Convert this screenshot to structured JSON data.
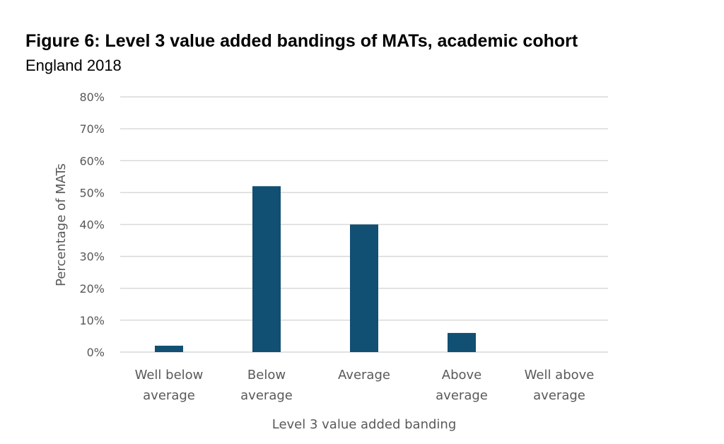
{
  "title": "Figure 6: Level 3 value added bandings of MATs, academic cohort",
  "subtitle": "England 2018",
  "chart_data": {
    "type": "bar",
    "categories": [
      [
        "Well below",
        "average"
      ],
      [
        "Below",
        "average"
      ],
      [
        "Average"
      ],
      [
        "Above",
        "average"
      ],
      [
        "Well above",
        "average"
      ]
    ],
    "values": [
      2,
      52,
      40,
      6,
      0
    ],
    "xlabel": "Level 3 value added banding",
    "ylabel": "Percentage of MATs",
    "ylim": [
      0,
      80
    ],
    "yticks": [
      "0%",
      "10%",
      "20%",
      "30%",
      "40%",
      "50%",
      "60%",
      "70%",
      "80%"
    ],
    "grid": true,
    "bar_color": "#114f73"
  }
}
